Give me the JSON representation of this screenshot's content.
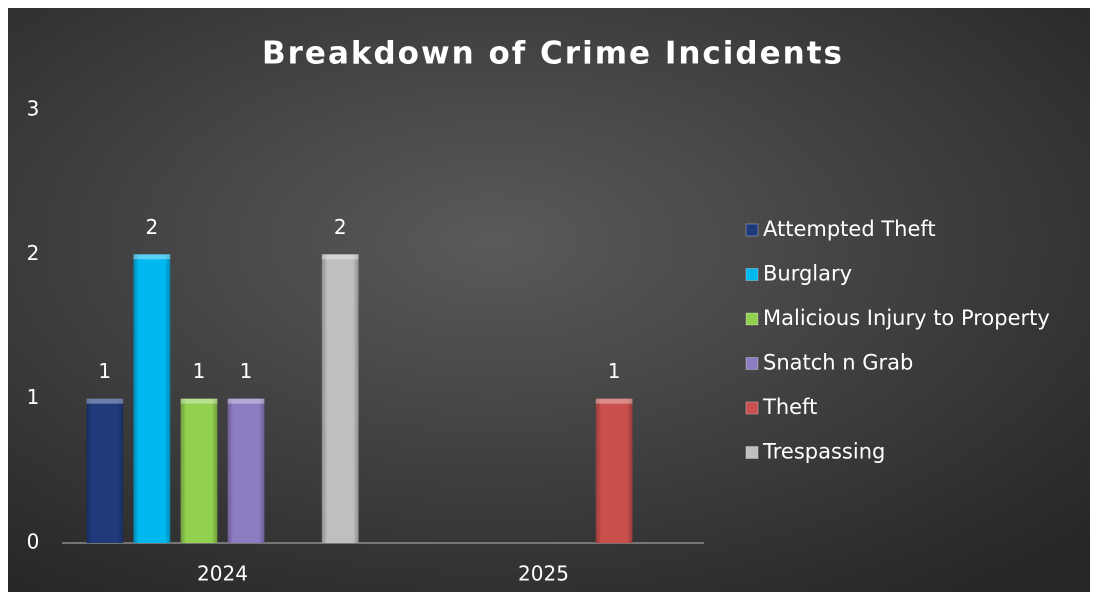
{
  "chart_data": {
    "type": "bar",
    "title": "Breakdown of Crime Incidents",
    "categories": [
      "2024",
      "2025"
    ],
    "series": [
      {
        "name": "Attempted Theft",
        "color": "#1f3b7c",
        "values": [
          1,
          null
        ]
      },
      {
        "name": "Burglary",
        "color": "#00b8f0",
        "values": [
          2,
          null
        ]
      },
      {
        "name": "Malicious Injury to Property",
        "color": "#92d050",
        "values": [
          1,
          null
        ]
      },
      {
        "name": "Snatch n Grab",
        "color": "#8e7cc3",
        "values": [
          1,
          null
        ]
      },
      {
        "name": "Theft",
        "color": "#c9504d",
        "values": [
          null,
          1
        ]
      },
      {
        "name": "Trespassing",
        "color": "#bfbfbf",
        "values": [
          2,
          null
        ]
      }
    ],
    "ylim": [
      0,
      3
    ],
    "yticks": [
      0,
      1,
      2,
      3
    ],
    "grid": false,
    "legend": "right"
  }
}
